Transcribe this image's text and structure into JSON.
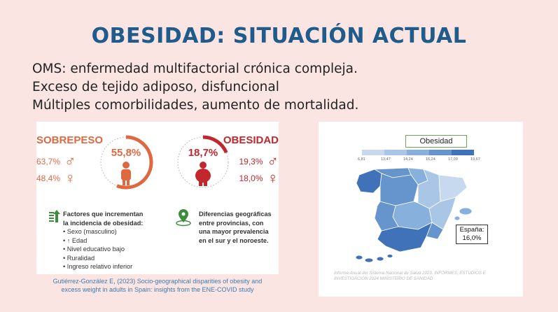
{
  "title": "OBESIDAD: SITUACIÓN ACTUAL",
  "bullets": [
    "OMS: enfermedad multifactorial crónica compleja.",
    "Exceso de tejido adiposo, disfuncional",
    "Múltiples comorbilidades, aumento de mortalidad."
  ],
  "infographic": {
    "sobrepeso": {
      "label": "SOBREPESO",
      "total": "55,8%",
      "male": "63,7%",
      "female": "48,4%",
      "fraction": 0.558,
      "color": "#e06840"
    },
    "obesidad": {
      "label": "OBESIDAD",
      "total": "18,7%",
      "male": "19,3%",
      "female": "18,0%",
      "fraction": 0.187,
      "color": "#c1272d"
    },
    "factors_heading_1": "Factores que incrementan",
    "factors_heading_2": "la incidencia de obesidad:",
    "factors": [
      "• Sexo (masculino)",
      "• ↑ Edad",
      "• Nivel educativo bajo",
      "• Ruralidad",
      "• Ingreso relativo inferior"
    ],
    "geo_lines": [
      "Diferencias geográficas",
      "entre provincias, con",
      "una mayor prevalencia",
      "en el sur y el noroeste."
    ],
    "citation_1": "Gutiérrez-González E, (2023) Socio-geographical disparities of obesity and",
    "citation_2": "excess weight in adults in Spain: insights from the ENE-COVID study"
  },
  "map": {
    "title": "Obesidad",
    "legend_colors": [
      "#c7d9ee",
      "#a9c6e6",
      "#88b0dc",
      "#6595cc",
      "#3f72b8"
    ],
    "legend_ticks": [
      "6,81",
      "13,47",
      "14,24",
      "16,24",
      "17,09",
      "19,67"
    ],
    "spain_label": "España:",
    "spain_value": "16,0%",
    "source_1": "Informe Anual del Sistema Nacional de Salud 2023. INFORMES, ESTUDIOS E",
    "source_2": "INVESTIGACIÓN 2024 MINISTERIO DE SANIDAD"
  }
}
